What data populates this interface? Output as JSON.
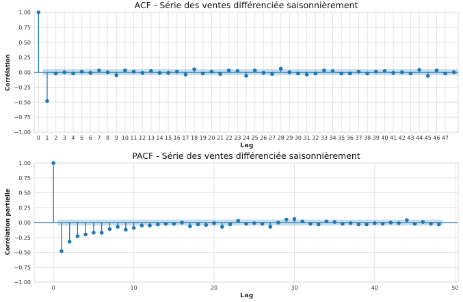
{
  "colors": {
    "series": "#1f77b4",
    "band": "#1f77b4",
    "grid": "#e2e2e2"
  },
  "chart_data": [
    {
      "type": "scatter",
      "title": "ACF - Série des ventes différenciée saisonnièrement",
      "xlabel": "Lag",
      "ylabel": "Corrélation",
      "xlim": [
        -0.5,
        48.5
      ],
      "ylim": [
        -1.0,
        1.0
      ],
      "x_tick_mode": "every-lag",
      "x_ticks": [
        0,
        1,
        2,
        3,
        4,
        5,
        6,
        7,
        8,
        9,
        10,
        11,
        12,
        13,
        14,
        15,
        16,
        17,
        18,
        19,
        20,
        21,
        22,
        23,
        24,
        25,
        26,
        27,
        28,
        29,
        30,
        31,
        32,
        33,
        34,
        35,
        36,
        37,
        38,
        39,
        40,
        41,
        42,
        43,
        44,
        45,
        46,
        47
      ],
      "y_ticks": [
        1.0,
        0.75,
        0.5,
        0.25,
        0.0,
        -0.25,
        -0.5,
        -0.75,
        -1.0
      ],
      "y_tick_labels": [
        "1.00",
        "0.75",
        "0.50",
        "0.25",
        "0.00",
        "−0.25",
        "−0.50",
        "−0.75",
        "−1.00"
      ],
      "confidence_band": [
        -0.05,
        0.05
      ],
      "grid": true,
      "lags": [
        0,
        1,
        2,
        3,
        4,
        5,
        6,
        7,
        8,
        9,
        10,
        11,
        12,
        13,
        14,
        15,
        16,
        17,
        18,
        19,
        20,
        21,
        22,
        23,
        24,
        25,
        26,
        27,
        28,
        29,
        30,
        31,
        32,
        33,
        34,
        35,
        36,
        37,
        38,
        39,
        40,
        41,
        42,
        43,
        44,
        45,
        46,
        47,
        48
      ],
      "values": [
        1.0,
        -0.48,
        -0.02,
        0.0,
        -0.02,
        0.01,
        -0.01,
        0.03,
        0.0,
        -0.05,
        0.03,
        0.01,
        -0.01,
        0.02,
        -0.01,
        -0.01,
        0.01,
        -0.04,
        0.05,
        -0.02,
        0.01,
        -0.03,
        0.03,
        0.02,
        -0.06,
        0.03,
        -0.01,
        -0.03,
        0.06,
        0.0,
        -0.02,
        -0.04,
        -0.02,
        0.03,
        0.02,
        -0.02,
        -0.02,
        0.01,
        -0.02,
        0.01,
        0.02,
        -0.01,
        0.0,
        -0.02,
        0.04,
        -0.06,
        0.03,
        -0.02,
        0.0
      ]
    },
    {
      "type": "scatter",
      "title": "PACF - Série des ventes différenciée saisonnièrement",
      "xlabel": "Lag",
      "ylabel": "Corrélation partielle",
      "xlim": [
        -2.4,
        50.4
      ],
      "ylim": [
        -1.0,
        1.0
      ],
      "x_tick_mode": "every-10",
      "x_ticks": [
        0,
        10,
        20,
        30,
        40,
        50
      ],
      "y_ticks": [
        1.0,
        0.75,
        0.5,
        0.25,
        0.0,
        -0.25,
        -0.5,
        -0.75,
        -1.0
      ],
      "y_tick_labels": [
        "1.00",
        "0.75",
        "0.50",
        "0.25",
        "0.00",
        "−0.25",
        "−0.50",
        "−0.75",
        "−1.00"
      ],
      "confidence_band": [
        -0.05,
        0.05
      ],
      "grid": true,
      "lags": [
        0,
        1,
        2,
        3,
        4,
        5,
        6,
        7,
        8,
        9,
        10,
        11,
        12,
        13,
        14,
        15,
        16,
        17,
        18,
        19,
        20,
        21,
        22,
        23,
        24,
        25,
        26,
        27,
        28,
        29,
        30,
        31,
        32,
        33,
        34,
        35,
        36,
        37,
        38,
        39,
        40,
        41,
        42,
        43,
        44,
        45,
        46,
        47,
        48
      ],
      "values": [
        1.0,
        -0.48,
        -0.32,
        -0.23,
        -0.2,
        -0.17,
        -0.17,
        -0.11,
        -0.07,
        -0.12,
        -0.09,
        -0.05,
        -0.05,
        -0.03,
        -0.02,
        -0.02,
        0.0,
        -0.06,
        -0.03,
        -0.04,
        -0.01,
        -0.07,
        -0.03,
        0.03,
        -0.02,
        -0.01,
        -0.02,
        -0.07,
        0.0,
        0.05,
        0.06,
        0.02,
        -0.02,
        -0.03,
        0.02,
        0.01,
        -0.02,
        -0.01,
        -0.03,
        -0.03,
        -0.01,
        -0.02,
        0.0,
        -0.01,
        0.04,
        -0.02,
        0.01,
        -0.02,
        -0.03
      ]
    }
  ]
}
